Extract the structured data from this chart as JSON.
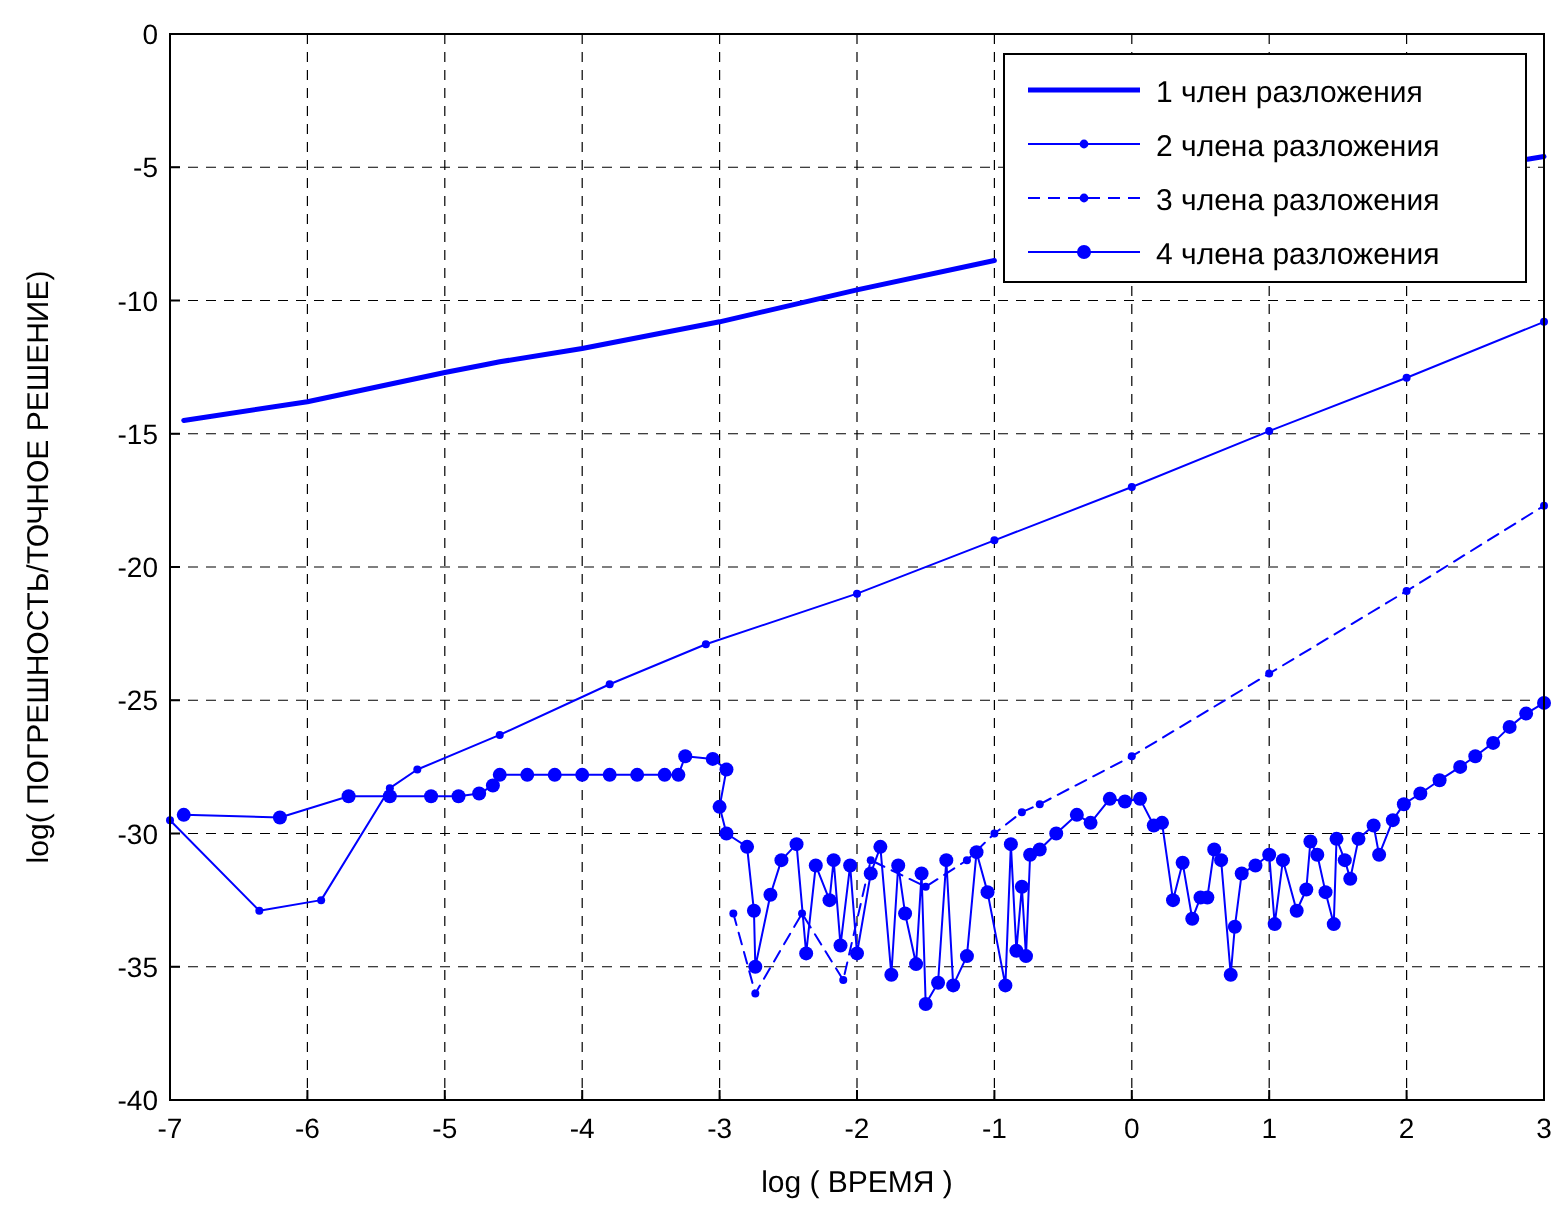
{
  "chart_data": {
    "type": "line",
    "xlabel": "log ( ВРЕМЯ )",
    "ylabel": "log( ПОГРЕШНОСТЬ/ТОЧНОЕ РЕШЕНИЕ)",
    "xlim": [
      -7,
      3
    ],
    "xticks": [
      -7,
      -6,
      -5,
      -4,
      -3,
      -2,
      -1,
      0,
      1,
      2,
      3
    ],
    "ylim": [
      -40,
      0
    ],
    "yticks": [
      -40,
      -35,
      -30,
      -25,
      -20,
      -15,
      -10,
      -5,
      0
    ],
    "grid": true,
    "legend": "top right",
    "series": [
      {
        "name": "1 член разложения",
        "color": "#0000ff",
        "marker": "none",
        "line_style": "solid",
        "x": [
          -6.9,
          -6,
          -5,
          -4.7,
          -4.6,
          -4,
          -3,
          -2,
          -1,
          0,
          1,
          2,
          2.88,
          3
        ],
        "values": [
          -14.5,
          -13.8,
          -12.7,
          -12.4,
          -12.3,
          -11.8,
          -10.8,
          -9.6,
          -8.5,
          null,
          null,
          null,
          -4.7,
          -4.6
        ]
      },
      {
        "name": "2 члена разложения",
        "color": "#0000ff",
        "marker": "circle",
        "line_style": "solid",
        "x": [
          -7,
          -6.35,
          -5.9,
          -5.4,
          -5.2,
          -4.6,
          -3.8,
          -3.1,
          -2,
          -1,
          0,
          1,
          2,
          3
        ],
        "values": [
          -29.5,
          -32.9,
          -32.5,
          -28.3,
          -27.6,
          -26.3,
          -24.4,
          -22.9,
          -21,
          -19,
          -17,
          -14.9,
          -12.9,
          -10.8
        ]
      },
      {
        "name": "3 члена разложения",
        "color": "#0000ff",
        "marker": "circle",
        "line_style": "dashed",
        "x": [
          -2.9,
          -2.74,
          -2.4,
          -2.1,
          -1.9,
          -1.5,
          -1.2,
          -1,
          -0.8,
          -0.67,
          0,
          1,
          2,
          3
        ],
        "values": [
          -33,
          -36,
          -33,
          -35.5,
          -31,
          -32,
          -31,
          -30,
          -29.2,
          -28.9,
          -27.1,
          -24,
          -20.9,
          -17.7
        ]
      },
      {
        "name": "4 члена разложения",
        "color": "#0000ff",
        "marker": "circle",
        "line_style": "solid",
        "x": [
          -6.9,
          -6.2,
          -5.7,
          -5.4,
          -5.1,
          -4.9,
          -4.75,
          -4.65,
          -4.6,
          -4.4,
          -4.2,
          -4,
          -3.8,
          -3.6,
          -3.4,
          -3.3,
          -3.25,
          -3.05,
          -2.95,
          -3.0,
          -2.95,
          -2.8,
          -2.75,
          -2.74,
          -2.63,
          -2.55,
          -2.44,
          -2.37,
          -2.3,
          -2.2,
          -2.17,
          -2.12,
          -2.05,
          -2,
          -1.9,
          -1.83,
          -1.75,
          -1.7,
          -1.65,
          -1.57,
          -1.53,
          -1.5,
          -1.41,
          -1.35,
          -1.3,
          -1.2,
          -1.13,
          -1.05,
          -0.92,
          -0.88,
          -0.84,
          -0.8,
          -0.77,
          -0.74,
          -0.67,
          -0.55,
          -0.4,
          -0.3,
          -0.16,
          -0.05,
          0.06,
          0.16,
          0.22,
          0.3,
          0.37,
          0.44,
          0.5,
          0.55,
          0.6,
          0.65,
          0.72,
          0.75,
          0.8,
          0.9,
          1.0,
          1.04,
          1.1,
          1.2,
          1.27,
          1.3,
          1.35,
          1.41,
          1.47,
          1.49,
          1.55,
          1.59,
          1.65,
          1.76,
          1.8,
          1.9,
          1.98,
          2.1,
          2.24,
          2.39,
          2.5,
          2.63,
          2.75,
          2.87,
          3
        ],
        "values": [
          -29.3,
          -29.4,
          -28.6,
          -28.6,
          -28.6,
          -28.6,
          -28.5,
          -28.2,
          -27.8,
          -27.8,
          -27.8,
          -27.8,
          -27.8,
          -27.8,
          -27.8,
          -27.8,
          -27.1,
          -27.2,
          -27.6,
          -29,
          -30,
          -30.5,
          -32.9,
          -35,
          -32.3,
          -31,
          -30.4,
          -34.5,
          -31.2,
          -32.5,
          -31,
          -34.2,
          -31.2,
          -34.5,
          -31.5,
          -30.5,
          -35.3,
          -31.2,
          -33,
          -34.9,
          -31.5,
          -36.4,
          -35.6,
          -31,
          -35.7,
          -34.6,
          -30.7,
          -32.2,
          -35.7,
          -30.4,
          -34.4,
          -32,
          -34.6,
          -30.8,
          -30.6,
          -30,
          -29.3,
          -29.6,
          -28.7,
          -28.8,
          -28.7,
          -29.7,
          -29.6,
          -32.5,
          -31.1,
          -33.2,
          -32.4,
          -32.4,
          -30.6,
          -31,
          -35.3,
          -33.5,
          -31.5,
          -31.2,
          -30.8,
          -33.4,
          -31,
          -32.9,
          -32.1,
          -30.3,
          -30.8,
          -32.2,
          -33.4,
          -30.2,
          -31,
          -31.7,
          -30.2,
          -29.7,
          -30.8,
          -29.5,
          -28.9,
          -28.5,
          -28,
          -27.5,
          -27.1,
          -26.6,
          -26,
          -25.5,
          -25.1
        ]
      }
    ]
  }
}
